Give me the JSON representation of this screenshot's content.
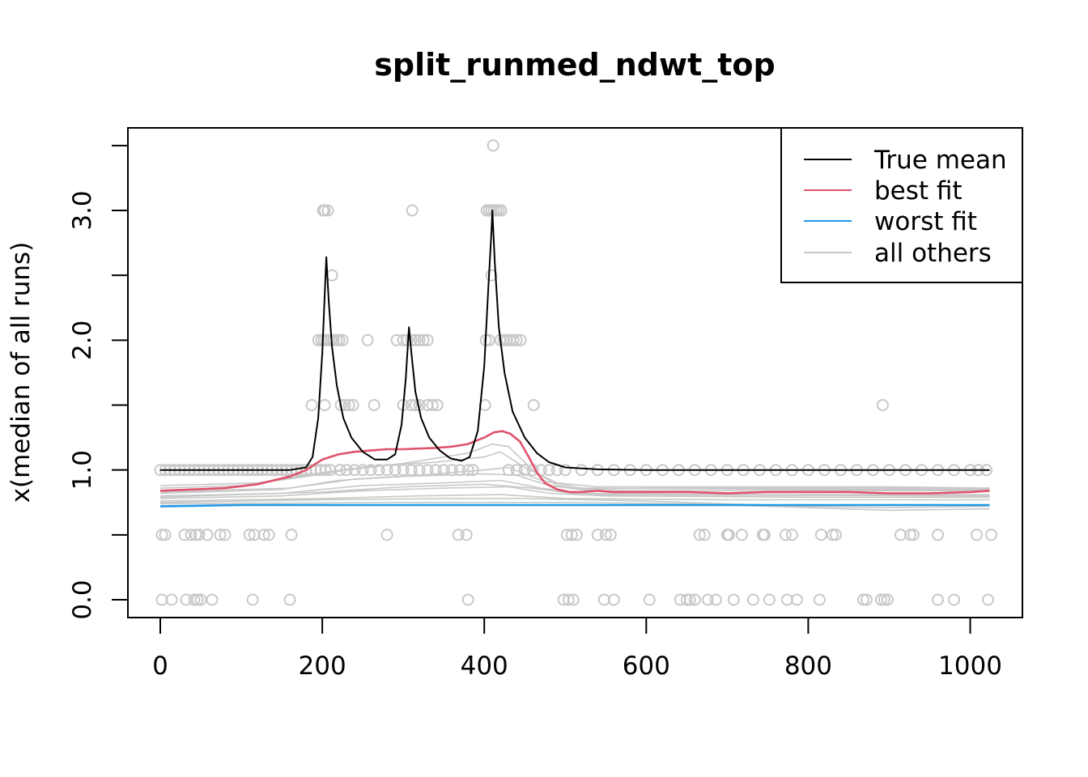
{
  "chart_data": {
    "type": "scatter",
    "title": "split_runmed_ndwt_top",
    "xlabel": "",
    "ylabel": "x(median of all runs)",
    "xlim": [
      0,
      1024
    ],
    "ylim": [
      0,
      3.5
    ],
    "x_ticks": [
      0,
      200,
      400,
      600,
      800,
      1000
    ],
    "y_ticks": [
      0.0,
      0.5,
      1.0,
      1.5,
      2.0,
      2.5,
      3.0,
      3.5
    ],
    "y_tick_labels": [
      "0.0",
      "1.0",
      "2.0",
      "3.0"
    ],
    "y_labeled_values": [
      0.0,
      1.0,
      2.0,
      3.0
    ],
    "grid": false,
    "legend_position": "top-right",
    "colors": {
      "true_mean": "#000000",
      "best_fit": "#DF536B",
      "worst_fit": "#2297E6",
      "all_others": "#C8C8C8",
      "points": "#C8C8C8"
    },
    "legend": [
      "True mean",
      "best fit",
      "worst fit",
      "all others"
    ],
    "points": [
      {
        "y": 3.5,
        "x": [
          411
        ]
      },
      {
        "y": 3.0,
        "x": [
          201,
          203,
          207,
          311,
          403,
          406,
          409,
          412,
          415,
          418,
          421
        ]
      },
      {
        "y": 2.5,
        "x": [
          212,
          409
        ]
      },
      {
        "y": 2.0,
        "x": [
          195,
          199,
          202,
          205,
          208,
          211,
          214,
          218,
          221,
          225,
          256,
          292,
          300,
          305,
          310,
          315,
          320,
          325,
          330,
          402,
          406,
          420,
          424,
          428,
          432,
          436,
          440,
          445
        ]
      },
      {
        "y": 1.5,
        "x": [
          187,
          203,
          223,
          228,
          233,
          238,
          264,
          300,
          310,
          315,
          320,
          330,
          336,
          342,
          401,
          461,
          892
        ]
      },
      {
        "y": 1.0,
        "x": [
          0,
          6,
          12,
          18,
          24,
          30,
          36,
          42,
          48,
          54,
          60,
          66,
          72,
          78,
          84,
          90,
          96,
          102,
          108,
          114,
          120,
          126,
          132,
          138,
          144,
          150,
          156,
          162,
          168,
          174,
          180,
          186,
          192,
          198,
          204,
          210,
          222,
          230,
          240,
          250,
          260,
          270,
          280,
          290,
          300,
          310,
          320,
          330,
          340,
          350,
          360,
          370,
          380,
          386,
          430,
          440,
          450,
          460,
          470,
          480,
          490,
          500,
          520,
          540,
          560,
          580,
          600,
          620,
          640,
          660,
          680,
          700,
          720,
          740,
          760,
          780,
          800,
          820,
          840,
          860,
          880,
          900,
          920,
          940,
          960,
          980,
          1000,
          1010,
          1020
        ]
      },
      {
        "y": 0.5,
        "x": [
          2,
          6,
          30,
          38,
          44,
          48,
          58,
          74,
          80,
          110,
          116,
          128,
          134,
          162,
          280,
          368,
          378,
          502,
          508,
          514,
          540,
          550,
          556,
          666,
          672,
          700,
          702,
          718,
          744,
          746,
          772,
          780,
          816,
          830,
          834,
          914,
          926,
          930,
          960,
          1008,
          1026
        ]
      },
      {
        "y": 0.0,
        "x": [
          2,
          14,
          32,
          42,
          46,
          50,
          64,
          114,
          160,
          380,
          498,
          504,
          510,
          548,
          560,
          604,
          642,
          650,
          654,
          660,
          676,
          686,
          708,
          732,
          752,
          774,
          786,
          814,
          868,
          872,
          890,
          894,
          898,
          960,
          980,
          1022
        ]
      }
    ],
    "series": [
      {
        "name": "True mean",
        "color": "#000000",
        "points": [
          [
            0,
            1.0
          ],
          [
            100,
            1.0
          ],
          [
            160,
            1.0
          ],
          [
            180,
            1.02
          ],
          [
            188,
            1.1
          ],
          [
            195,
            1.4
          ],
          [
            200,
            1.9
          ],
          [
            203,
            2.35
          ],
          [
            205,
            2.64
          ],
          [
            208,
            2.3
          ],
          [
            212,
            1.95
          ],
          [
            218,
            1.65
          ],
          [
            226,
            1.4
          ],
          [
            236,
            1.25
          ],
          [
            250,
            1.14
          ],
          [
            265,
            1.08
          ],
          [
            280,
            1.08
          ],
          [
            290,
            1.12
          ],
          [
            298,
            1.35
          ],
          [
            303,
            1.7
          ],
          [
            306,
            2.0
          ],
          [
            307,
            2.1
          ],
          [
            310,
            1.9
          ],
          [
            315,
            1.6
          ],
          [
            322,
            1.4
          ],
          [
            332,
            1.25
          ],
          [
            345,
            1.15
          ],
          [
            358,
            1.09
          ],
          [
            372,
            1.07
          ],
          [
            382,
            1.1
          ],
          [
            392,
            1.3
          ],
          [
            400,
            1.8
          ],
          [
            405,
            2.4
          ],
          [
            409,
            2.85
          ],
          [
            410,
            3.0
          ],
          [
            413,
            2.6
          ],
          [
            418,
            2.1
          ],
          [
            425,
            1.75
          ],
          [
            435,
            1.45
          ],
          [
            450,
            1.25
          ],
          [
            465,
            1.13
          ],
          [
            480,
            1.06
          ],
          [
            500,
            1.02
          ],
          [
            540,
            1.005
          ],
          [
            600,
            1.0
          ],
          [
            800,
            1.0
          ],
          [
            1024,
            1.0
          ]
        ]
      },
      {
        "name": "best fit",
        "color": "#DF536B",
        "points": [
          [
            0,
            0.84
          ],
          [
            40,
            0.85
          ],
          [
            80,
            0.86
          ],
          [
            120,
            0.89
          ],
          [
            160,
            0.95
          ],
          [
            180,
            1.0
          ],
          [
            200,
            1.08
          ],
          [
            220,
            1.12
          ],
          [
            240,
            1.14
          ],
          [
            260,
            1.15
          ],
          [
            280,
            1.16
          ],
          [
            300,
            1.16
          ],
          [
            340,
            1.17
          ],
          [
            360,
            1.18
          ],
          [
            380,
            1.2
          ],
          [
            400,
            1.25
          ],
          [
            412,
            1.29
          ],
          [
            422,
            1.3
          ],
          [
            432,
            1.28
          ],
          [
            444,
            1.22
          ],
          [
            455,
            1.1
          ],
          [
            465,
            0.98
          ],
          [
            475,
            0.9
          ],
          [
            490,
            0.85
          ],
          [
            505,
            0.83
          ],
          [
            520,
            0.83
          ],
          [
            540,
            0.84
          ],
          [
            560,
            0.83
          ],
          [
            600,
            0.83
          ],
          [
            650,
            0.83
          ],
          [
            700,
            0.82
          ],
          [
            750,
            0.83
          ],
          [
            800,
            0.83
          ],
          [
            850,
            0.83
          ],
          [
            900,
            0.82
          ],
          [
            950,
            0.82
          ],
          [
            1000,
            0.83
          ],
          [
            1024,
            0.84
          ]
        ]
      },
      {
        "name": "worst fit",
        "color": "#2297E6",
        "points": [
          [
            0,
            0.72
          ],
          [
            100,
            0.73
          ],
          [
            200,
            0.73
          ],
          [
            300,
            0.73
          ],
          [
            400,
            0.73
          ],
          [
            500,
            0.73
          ],
          [
            600,
            0.73
          ],
          [
            700,
            0.73
          ],
          [
            800,
            0.73
          ],
          [
            900,
            0.73
          ],
          [
            1024,
            0.73
          ]
        ]
      },
      {
        "name": "all others",
        "color": "#C8C8C8",
        "lines": [
          [
            [
              0,
              0.86
            ],
            [
              100,
              0.88
            ],
            [
              180,
              0.95
            ],
            [
              230,
              1.0
            ],
            [
              300,
              1.05
            ],
            [
              380,
              1.13
            ],
            [
              410,
              1.2
            ],
            [
              430,
              1.18
            ],
            [
              460,
              1.0
            ],
            [
              490,
              0.88
            ],
            [
              520,
              0.85
            ],
            [
              600,
              0.86
            ],
            [
              800,
              0.86
            ],
            [
              1024,
              0.86
            ]
          ],
          [
            [
              0,
              0.88
            ],
            [
              120,
              0.9
            ],
            [
              200,
              0.98
            ],
            [
              260,
              1.03
            ],
            [
              340,
              1.06
            ],
            [
              400,
              1.1
            ],
            [
              420,
              1.14
            ],
            [
              450,
              1.02
            ],
            [
              490,
              0.9
            ],
            [
              540,
              0.87
            ],
            [
              700,
              0.87
            ],
            [
              900,
              0.87
            ],
            [
              1024,
              0.86
            ]
          ],
          [
            [
              0,
              0.82
            ],
            [
              150,
              0.85
            ],
            [
              220,
              0.92
            ],
            [
              300,
              0.95
            ],
            [
              400,
              0.97
            ],
            [
              440,
              0.96
            ],
            [
              480,
              0.88
            ],
            [
              530,
              0.84
            ],
            [
              700,
              0.84
            ],
            [
              900,
              0.84
            ],
            [
              1024,
              0.84
            ]
          ],
          [
            [
              0,
              0.8
            ],
            [
              150,
              0.82
            ],
            [
              250,
              0.88
            ],
            [
              350,
              0.9
            ],
            [
              420,
              0.92
            ],
            [
              470,
              0.86
            ],
            [
              520,
              0.82
            ],
            [
              700,
              0.81
            ],
            [
              1024,
              0.81
            ]
          ],
          [
            [
              0,
              0.78
            ],
            [
              150,
              0.8
            ],
            [
              250,
              0.84
            ],
            [
              350,
              0.86
            ],
            [
              430,
              0.87
            ],
            [
              480,
              0.82
            ],
            [
              550,
              0.8
            ],
            [
              800,
              0.79
            ],
            [
              1024,
              0.79
            ]
          ],
          [
            [
              0,
              0.76
            ],
            [
              200,
              0.78
            ],
            [
              320,
              0.8
            ],
            [
              420,
              0.81
            ],
            [
              500,
              0.78
            ],
            [
              700,
              0.77
            ],
            [
              1024,
              0.77
            ]
          ],
          [
            [
              0,
              0.75
            ],
            [
              200,
              0.77
            ],
            [
              350,
              0.78
            ],
            [
              450,
              0.78
            ],
            [
              600,
              0.76
            ],
            [
              700,
              0.74
            ],
            [
              800,
              0.72
            ],
            [
              900,
              0.71
            ],
            [
              1024,
              0.72
            ]
          ],
          [
            [
              0,
              0.74
            ],
            [
              300,
              0.75
            ],
            [
              500,
              0.75
            ],
            [
              650,
              0.74
            ],
            [
              750,
              0.72
            ],
            [
              900,
              0.69
            ],
            [
              1024,
              0.7
            ]
          ],
          [
            [
              0,
              0.83
            ],
            [
              160,
              0.86
            ],
            [
              240,
              0.93
            ],
            [
              320,
              0.96
            ],
            [
              400,
              1.0
            ],
            [
              430,
              1.02
            ],
            [
              470,
              0.92
            ],
            [
              520,
              0.86
            ],
            [
              800,
              0.85
            ],
            [
              1024,
              0.85
            ]
          ],
          [
            [
              0,
              0.79
            ],
            [
              200,
              0.83
            ],
            [
              300,
              0.87
            ],
            [
              400,
              0.89
            ],
            [
              460,
              0.86
            ],
            [
              520,
              0.81
            ],
            [
              1024,
              0.8
            ]
          ]
        ]
      }
    ]
  }
}
